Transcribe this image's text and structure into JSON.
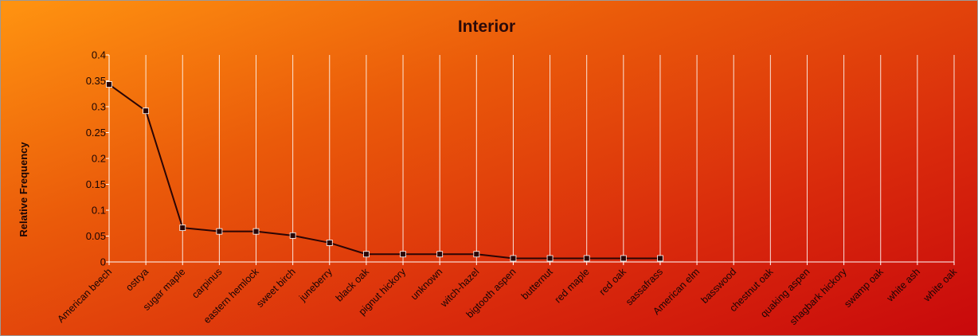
{
  "chart_data": {
    "type": "line",
    "title": "Interior",
    "xlabel": "",
    "ylabel": "Relative Frequency",
    "ylim": [
      0,
      0.4
    ],
    "yticks": [
      "0",
      "0.05",
      "0.1",
      "0.15",
      "0.2",
      "0.25",
      "0.3",
      "0.35",
      "0.4"
    ],
    "grid": "vertical",
    "categories": [
      "American beech",
      "ostrya",
      "sugar maple",
      "carpinus",
      "eastern hemlock",
      "sweet birch",
      "juneberry",
      "black oak",
      "pignut hickory",
      "unknown",
      "witch-hazel",
      "bigtooth aspen",
      "butternut",
      "red maple",
      "red oak",
      "sassafrass",
      "American elm",
      "basswood",
      "chestnut oak",
      "quaking aspen",
      "shagbark hickory",
      "swamp oak",
      "white ash",
      "white oak"
    ],
    "series": [
      {
        "values": [
          0.343,
          0.292,
          0.066,
          0.059,
          0.059,
          0.051,
          0.037,
          0.015,
          0.015,
          0.015,
          0.015,
          0.007,
          0.007,
          0.007,
          0.007,
          0.007,
          null,
          null,
          null,
          null,
          null,
          null,
          null,
          null
        ],
        "color": "#2a0505"
      }
    ]
  }
}
